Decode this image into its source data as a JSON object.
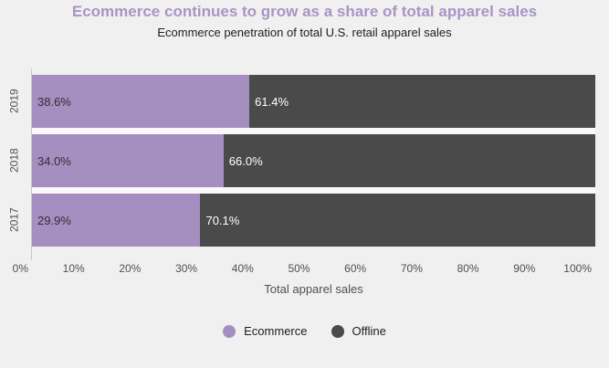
{
  "page": {
    "background": "#f1f0f0"
  },
  "header": {
    "title": "Ecommerce continues to grow as a share of total apparel sales",
    "title_color": "#a795c6",
    "subtitle": "Ecommerce penetration of total U.S. retail apparel sales",
    "subtitle_color": "#1d1d1d"
  },
  "chart_data": {
    "type": "bar",
    "orientation": "horizontal",
    "stacked": true,
    "categories": [
      "2019",
      "2018",
      "2017"
    ],
    "series": [
      {
        "name": "Ecommerce",
        "color": "#a48fc0",
        "values": [
          38.6,
          34.0,
          29.9
        ],
        "labels": [
          "38.6%",
          "34.0%",
          "29.9%"
        ],
        "label_color": "#322d38"
      },
      {
        "name": "Offline",
        "color": "#4a4a4a",
        "values": [
          61.4,
          66.0,
          70.1
        ],
        "labels": [
          "61.4%",
          "66.0%",
          "70.1%"
        ],
        "label_color": "#ffffff"
      }
    ],
    "xlabel": "Total apparel sales",
    "xlim": [
      0,
      100
    ],
    "xticks": [
      "0%",
      "10%",
      "20%",
      "30%",
      "40%",
      "50%",
      "60%",
      "70%",
      "80%",
      "90%",
      "100%"
    ],
    "grid": false,
    "legend_position": "bottom",
    "legend": [
      {
        "label": "Ecommerce",
        "color": "#a48fc0"
      },
      {
        "label": "Offline",
        "color": "#4a4a4a"
      }
    ],
    "axis_text_color": "#4f4f4f"
  }
}
